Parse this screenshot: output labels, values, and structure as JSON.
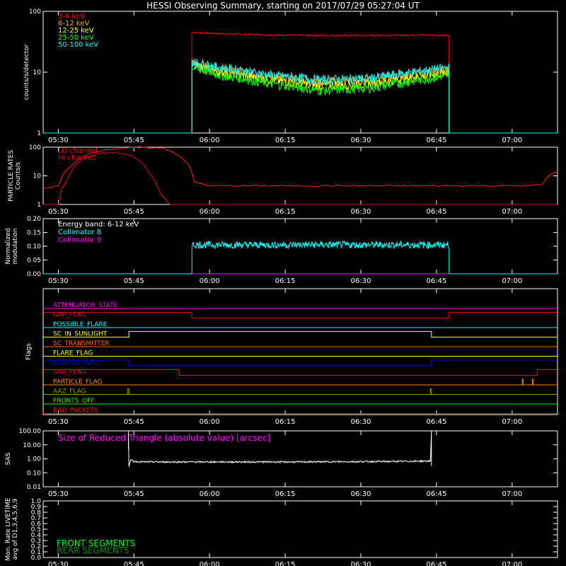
{
  "title": "HESSI Observing Summary, starting on 2017/07/29 05:27:04 UT",
  "time_axis": {
    "range_minutes": [
      0,
      102
    ],
    "tick_minutes": [
      3,
      18,
      33,
      48,
      63,
      78,
      93
    ],
    "tick_labels": [
      "05:30",
      "05:45",
      "06:00",
      "06:15",
      "06:30",
      "06:45",
      "07:00"
    ]
  },
  "colors": {
    "red": "#ff0000",
    "orange": "#ffa500",
    "yellow": "#ffff00",
    "green": "#00ff00",
    "cyan": "#00ffff",
    "magenta": "#ff00ff",
    "blue": "#0000ff",
    "white": "#ffffff"
  },
  "chart_data": [
    {
      "id": "counts",
      "type": "line",
      "ylabel": "counts/s/detector",
      "yscale": "log",
      "ylim": [
        1,
        100
      ],
      "ytick_labels": [
        "1",
        "10",
        "100"
      ],
      "ytick_values": [
        1,
        10,
        100
      ],
      "legend_position": "top-left",
      "data_window_minutes": [
        29.5,
        80.5
      ],
      "series": [
        {
          "name": "3-6 keV",
          "color": "#ff0000",
          "x": [
            29.5,
            35,
            45,
            55,
            65,
            75,
            80.5
          ],
          "y": [
            45,
            43,
            41,
            40,
            40,
            41,
            40
          ]
        },
        {
          "name": "6-12 keV",
          "color": "#ffa500",
          "x": [
            29.5,
            35,
            45,
            55,
            65,
            75,
            80.5
          ],
          "y": [
            14,
            11,
            8.5,
            7,
            7.5,
            9.5,
            11
          ]
        },
        {
          "name": "12-25 keV",
          "color": "#ffff00",
          "x": [
            29.5,
            35,
            45,
            55,
            65,
            75,
            80.5
          ],
          "y": [
            13,
            10,
            7.5,
            6,
            6.5,
            8.5,
            10
          ]
        },
        {
          "name": "25-50 keV",
          "color": "#00ff00",
          "x": [
            29.5,
            35,
            45,
            55,
            65,
            75,
            80.5
          ],
          "y": [
            12,
            9,
            6.5,
            5,
            5.5,
            7.5,
            9
          ]
        },
        {
          "name": "50-100 keV",
          "color": "#00ffff",
          "x": [
            29.5,
            35,
            45,
            55,
            65,
            75,
            80.5
          ],
          "y": [
            15,
            12,
            9,
            7.5,
            8,
            10.5,
            12
          ]
        }
      ]
    },
    {
      "id": "particle",
      "type": "line",
      "ylabel": "PARTICLE RATES",
      "ylabel2": "Counts/s",
      "yscale": "log",
      "ylim": [
        1,
        100
      ],
      "ytick_labels": [
        "1",
        "10",
        "100"
      ],
      "ytick_values": [
        1,
        10,
        100
      ],
      "legend_position": "top-left",
      "series": [
        {
          "name": "LO channel",
          "color": "#ff0000",
          "x": [
            0,
            3,
            6,
            9,
            12,
            15,
            18,
            21,
            24,
            27,
            30,
            33,
            40,
            50,
            60,
            70,
            80,
            90,
            96,
            99,
            100,
            102
          ],
          "y": [
            3.5,
            4.5,
            25,
            60,
            80,
            90,
            95,
            96,
            90,
            50,
            6,
            4.5,
            4.5,
            4.5,
            4.5,
            4.5,
            4.5,
            4.5,
            4.5,
            5,
            9,
            15
          ]
        },
        {
          "name": "HI channel",
          "color": "#ff0000",
          "x": [
            0,
            3,
            5,
            8,
            11,
            14,
            17,
            19,
            21,
            23,
            25,
            102
          ],
          "y": [
            1,
            1,
            8,
            40,
            60,
            65,
            55,
            35,
            12,
            2.5,
            1,
            1
          ]
        }
      ]
    },
    {
      "id": "modulation",
      "type": "line",
      "ylabel": "Normalized",
      "ylabel2": "modulation",
      "yscale": "linear",
      "ylim": [
        0,
        0.2
      ],
      "ytick_labels": [
        "0.00",
        "0.05",
        "0.10",
        "0.15",
        "0.20"
      ],
      "ytick_values": [
        0,
        0.05,
        0.1,
        0.15,
        0.2
      ],
      "legend_position": "top-left",
      "legend_title": "Energy band: 6-12 keV",
      "series": [
        {
          "name": "Collimator 8",
          "color": "#00ffff",
          "x": [
            29.5,
            80.5
          ],
          "y": [
            0.105,
            0.105
          ],
          "noise": 0.013
        },
        {
          "name": "Collimator 9",
          "color": "#ff00ff",
          "x": [
            0,
            102
          ],
          "y": [
            0,
            0
          ]
        }
      ]
    },
    {
      "id": "flags",
      "type": "line",
      "ylabel": "Flags",
      "series": [
        {
          "name": "ATTENUATOR_STATE",
          "color": "#ff00ff",
          "x": [
            0,
            102
          ],
          "y": [
            0,
            0
          ]
        },
        {
          "name": "GAP_FLAG",
          "color": "#ff0000",
          "x": [
            0,
            29.5,
            29.5,
            80.5,
            80.5,
            102
          ],
          "y": [
            1,
            1,
            0,
            0,
            1,
            1
          ]
        },
        {
          "name": "POSSIBLE_FLARE",
          "color": "#00ffff",
          "x": [
            0,
            102
          ],
          "y": [
            0,
            0
          ]
        },
        {
          "name": "SC_IN_SUNLIGHT",
          "color": "#ffff00",
          "x": [
            0,
            17,
            17,
            77,
            77,
            102
          ],
          "y": [
            0,
            0,
            1,
            1,
            0,
            0
          ]
        },
        {
          "name": "SC_TRANSMITTER",
          "color": "#ff6600",
          "x": [
            0,
            102
          ],
          "y": [
            0,
            0
          ]
        },
        {
          "name": "FLARE_FLAG",
          "color": "#ffff00",
          "x": [
            0,
            102
          ],
          "y": [
            0,
            0
          ]
        },
        {
          "name": "ECLIPSE_FLAG",
          "color": "#0000ff",
          "x": [
            0,
            17,
            17,
            77,
            77,
            102
          ],
          "y": [
            1,
            1,
            0,
            0,
            1,
            1
          ]
        },
        {
          "name": "SAA_FLAG",
          "color": "#ff0000",
          "x": [
            0,
            27,
            27,
            98,
            98,
            102
          ],
          "y": [
            1,
            1,
            0,
            0,
            1,
            1
          ]
        },
        {
          "name": "PARTICLE_FLAG",
          "color": "#ff8c00",
          "x": [
            0,
            95,
            95,
            95.2,
            95.2,
            97,
            97,
            97.2,
            97.2,
            102
          ],
          "y": [
            0,
            0,
            1,
            1,
            0,
            0,
            1,
            1,
            0,
            0
          ]
        },
        {
          "name": "AAZ_FLAG",
          "color": "#9a9a00",
          "x": [
            0,
            16.8,
            16.8,
            17,
            17,
            76.8,
            76.8,
            77,
            77,
            102
          ],
          "y": [
            0,
            0,
            1,
            1,
            0,
            0,
            1,
            1,
            0,
            0
          ]
        },
        {
          "name": "FRONTS_OFF",
          "color": "#00ff00",
          "x": [
            0,
            102
          ],
          "y": [
            0,
            0
          ]
        },
        {
          "name": "BAD_PACKETS",
          "color": "#ff0000",
          "x": [
            0,
            102
          ],
          "y": [
            0,
            0
          ]
        }
      ]
    },
    {
      "id": "sas",
      "type": "line",
      "ylabel": "SAS",
      "yscale": "log",
      "ylim": [
        0.01,
        100
      ],
      "ytick_labels": [
        "0.01",
        "0.10",
        "1.00",
        "10.00",
        "100.00"
      ],
      "ytick_values": [
        0.01,
        0.1,
        1,
        10,
        100
      ],
      "annotation": "Size of Reduced Triangle (absolute value) [arcsec]",
      "series": [
        {
          "name": "SAS",
          "color": "#ffffff",
          "x": [
            16.9,
            17,
            17.4,
            18,
            20,
            30,
            50,
            70,
            76.8,
            77
          ],
          "y": [
            5,
            0.3,
            0.8,
            0.65,
            0.6,
            0.6,
            0.6,
            0.65,
            0.7,
            100
          ]
        }
      ]
    },
    {
      "id": "livetime",
      "type": "line",
      "ylabel": "Mon. Rate LIVETIME",
      "ylabel2": "avg of D1,3,4,5,6,9",
      "yscale": "linear",
      "ylim": [
        0,
        1
      ],
      "ytick_labels": [
        "0.0",
        "0.1",
        "0.2",
        "0.3",
        "0.4",
        "0.5",
        "0.6",
        "0.7",
        "0.8",
        "0.9",
        "1.0"
      ],
      "ytick_values": [
        0,
        0.1,
        0.2,
        0.3,
        0.4,
        0.5,
        0.6,
        0.7,
        0.8,
        0.9,
        1.0
      ],
      "legend_position": "bottom-left",
      "series": [
        {
          "name": "FRONT SEGMENTS",
          "color": "#00ff00",
          "x": [],
          "y": []
        },
        {
          "name": "REAR SEGMENTS",
          "color": "#008800",
          "x": [],
          "y": []
        }
      ]
    }
  ]
}
